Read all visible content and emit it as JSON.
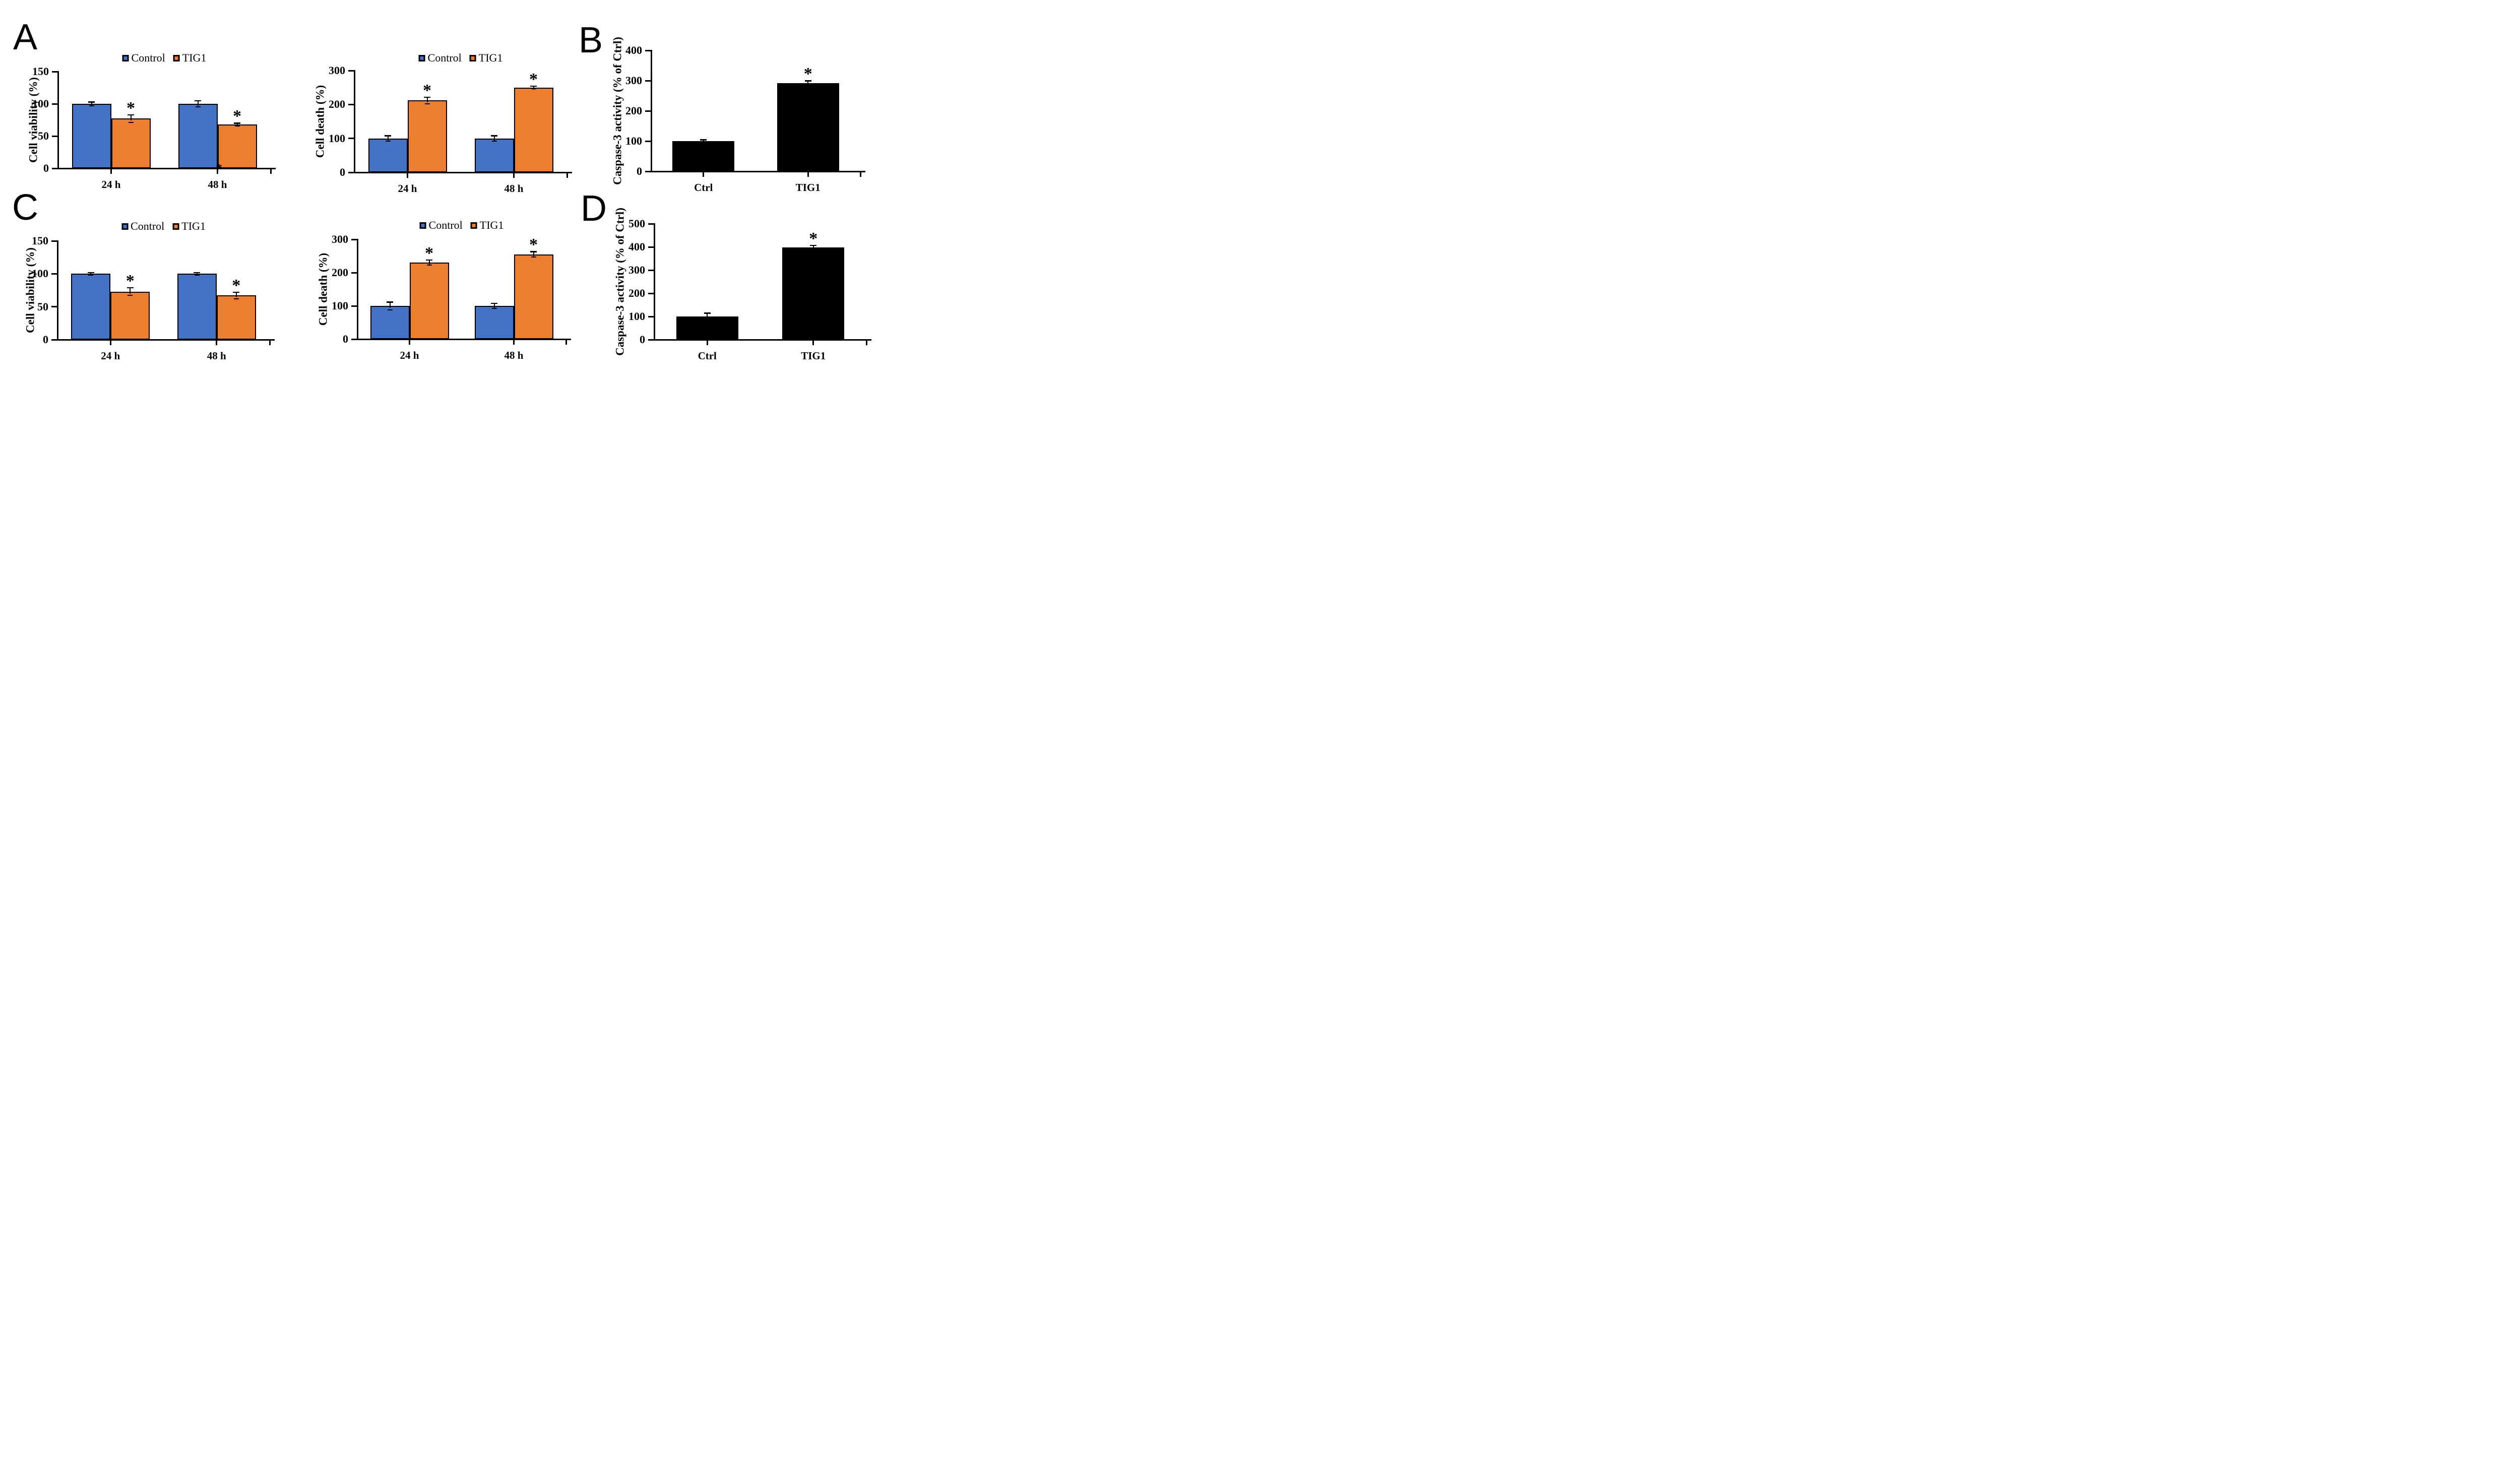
{
  "figure": {
    "description": "Six-panel scientific bar chart figure (panels A-D) showing TIG1 effects on cell viability, cell death and caspase-3 activity",
    "panels": [
      {
        "label": "A"
      },
      {
        "label": "B"
      },
      {
        "label": "C"
      },
      {
        "label": "D"
      }
    ]
  },
  "colors": {
    "control_blue": "#4472C4",
    "tig1_orange": "#ED7D31",
    "black": "#000000",
    "background": "#FFFFFF"
  },
  "legend": {
    "entries": [
      {
        "label": "Control",
        "color": "#4472C4"
      },
      {
        "label": "TIG1",
        "color": "#ED7D31"
      }
    ]
  },
  "chart_data": [
    {
      "id": "A-viability",
      "panel": "A",
      "type": "bar",
      "title": "",
      "ylabel": "Cell viability (%)",
      "xlabel": "",
      "ylim": [
        0,
        150
      ],
      "yticks": [
        0,
        50,
        100,
        150
      ],
      "categories": [
        "24 h",
        "48 h"
      ],
      "legend": true,
      "legend_position": "top",
      "grid": false,
      "series": [
        {
          "name": "Control",
          "color": "#4472C4",
          "values": [
            100,
            100
          ],
          "errors": [
            3,
            5
          ],
          "significance": [
            "",
            ""
          ]
        },
        {
          "name": "TIG1",
          "color": "#ED7D31",
          "values": [
            77,
            68
          ],
          "errors": [
            6,
            2
          ],
          "significance": [
            "*",
            "*"
          ]
        }
      ],
      "annotations": [
        {
          "text": "*",
          "note": "stray asterisk sitting on the x-axis baseline at the left edge of the 48 h TIG1 bar",
          "category_index": 1
        }
      ]
    },
    {
      "id": "A-death",
      "panel": "A",
      "type": "bar",
      "title": "",
      "ylabel": "Cell death (%)",
      "xlabel": "",
      "ylim": [
        0,
        300
      ],
      "yticks": [
        0,
        100,
        200,
        300
      ],
      "categories": [
        "24 h",
        "48 h"
      ],
      "legend": true,
      "legend_position": "top",
      "grid": false,
      "series": [
        {
          "name": "Control",
          "color": "#4472C4",
          "values": [
            100,
            100
          ],
          "errors": [
            8,
            8
          ],
          "significance": [
            "",
            ""
          ]
        },
        {
          "name": "TIG1",
          "color": "#ED7D31",
          "values": [
            212,
            250
          ],
          "errors": [
            10,
            4
          ],
          "significance": [
            "*",
            "*"
          ]
        }
      ],
      "annotations": []
    },
    {
      "id": "B-caspase",
      "panel": "B",
      "type": "bar",
      "title": "",
      "ylabel": "Caspase-3 activity (% of Ctrl)",
      "xlabel": "",
      "ylim": [
        0,
        400
      ],
      "yticks": [
        0,
        100,
        200,
        300,
        400
      ],
      "categories": [
        "Ctrl",
        "TIG1"
      ],
      "legend": false,
      "grid": false,
      "series": [
        {
          "name": "Caspase-3 activity",
          "color": "#000000",
          "values": [
            100,
            292
          ],
          "errors": [
            5,
            8
          ],
          "significance": [
            "",
            "*"
          ]
        }
      ],
      "annotations": []
    },
    {
      "id": "C-viability",
      "panel": "C",
      "type": "bar",
      "title": "",
      "ylabel": "Cell viability (%)",
      "xlabel": "",
      "ylim": [
        0,
        150
      ],
      "yticks": [
        0,
        50,
        100,
        150
      ],
      "categories": [
        "24 h",
        "48 h"
      ],
      "legend": true,
      "legend_position": "top",
      "grid": false,
      "series": [
        {
          "name": "Control",
          "color": "#4472C4",
          "values": [
            100,
            100
          ],
          "errors": [
            2,
            2
          ],
          "significance": [
            "",
            ""
          ]
        },
        {
          "name": "TIG1",
          "color": "#ED7D31",
          "values": [
            73,
            67
          ],
          "errors": [
            6,
            5
          ],
          "significance": [
            "*",
            "*"
          ]
        }
      ],
      "annotations": []
    },
    {
      "id": "C-death",
      "panel": "C",
      "type": "bar",
      "title": "",
      "ylabel": "Cell death (%)",
      "xlabel": "",
      "ylim": [
        0,
        300
      ],
      "yticks": [
        0,
        100,
        200,
        300
      ],
      "categories": [
        "24 h",
        "48 h"
      ],
      "legend": true,
      "legend_position": "top",
      "grid": false,
      "series": [
        {
          "name": "Control",
          "color": "#4472C4",
          "values": [
            100,
            100
          ],
          "errors": [
            12,
            8
          ],
          "significance": [
            "",
            ""
          ]
        },
        {
          "name": "TIG1",
          "color": "#ED7D31",
          "values": [
            230,
            255
          ],
          "errors": [
            8,
            8
          ],
          "significance": [
            "*",
            "*"
          ]
        }
      ],
      "annotations": []
    },
    {
      "id": "D-caspase",
      "panel": "D",
      "type": "bar",
      "title": "",
      "ylabel": "Caspase-3 activity (% of Ctrl)",
      "xlabel": "",
      "ylim": [
        0,
        500
      ],
      "yticks": [
        0,
        100,
        200,
        300,
        400,
        500
      ],
      "categories": [
        "Ctrl",
        "TIG1"
      ],
      "legend": false,
      "grid": false,
      "series": [
        {
          "name": "Caspase-3 activity",
          "color": "#000000",
          "values": [
            100,
            397
          ],
          "errors": [
            15,
            10
          ],
          "significance": [
            "",
            "*"
          ]
        }
      ],
      "annotations": []
    }
  ]
}
